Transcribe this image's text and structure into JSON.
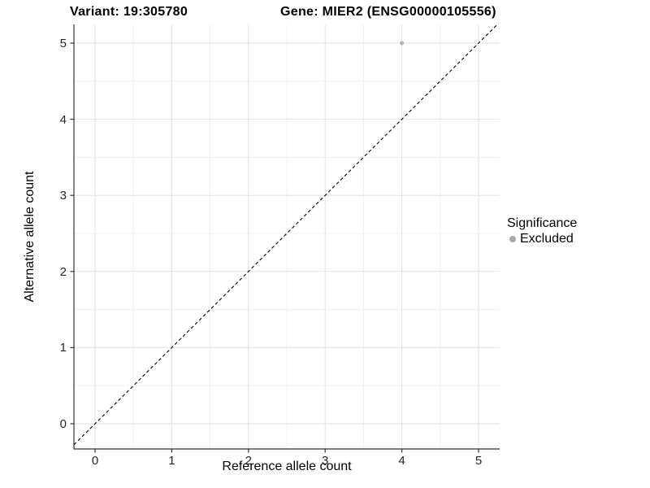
{
  "titles": {
    "variant": "Variant: 19:305780",
    "gene": "Gene: MIER2 (ENSG00000105556)"
  },
  "axes": {
    "x_label": "Reference allele count",
    "y_label": "Alternative allele count"
  },
  "legend": {
    "title": "Significance",
    "items": [
      {
        "label": "Excluded",
        "color": "#a9a9a9"
      }
    ]
  },
  "colors": {
    "background": "#ffffff",
    "major_gridline": "#e2e2e2",
    "minor_gridline": "#f0f0f0",
    "axis_line": "#333333",
    "tick_mark": "#333333",
    "reference_line": "#000000",
    "point": "#b3b3b3"
  },
  "chart_data": {
    "type": "scatter",
    "title_left": "Variant: 19:305780",
    "title_right": "Gene: MIER2 (ENSG00000105556)",
    "xlabel": "Reference allele count",
    "ylabel": "Alternative allele count",
    "xlim": [
      0,
      5
    ],
    "ylim": [
      0,
      5
    ],
    "x_ticks": [
      0,
      1,
      2,
      3,
      4,
      5
    ],
    "y_ticks": [
      0,
      1,
      2,
      3,
      4,
      5
    ],
    "grid": "major and minor gridlines on white panel",
    "legend_position": "right",
    "series": [
      {
        "name": "Excluded",
        "color": "#b3b3b3",
        "points": [
          {
            "x": 4,
            "y": 5
          }
        ]
      }
    ],
    "reference_line": {
      "type": "identity y=x",
      "style": "dashed",
      "color": "#000000"
    }
  }
}
